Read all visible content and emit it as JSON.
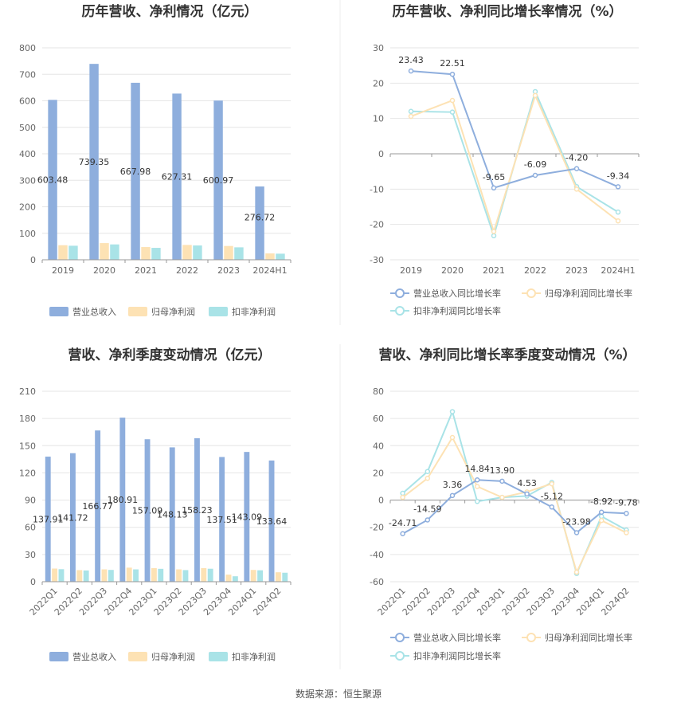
{
  "footer": {
    "source": "数据来源：恒生聚源"
  },
  "colors": {
    "revenue": "#8eaedd",
    "netprofit": "#fde2b4",
    "deducted": "#a9e3e7",
    "revenue_line": "#8eaedd",
    "netprofit_line": "#fde2b4",
    "deducted_line": "#a9e3e7"
  },
  "chart_data": [
    {
      "id": "annual_bar",
      "type": "bar",
      "title": "历年营收、净利情况（亿元）",
      "categories": [
        "2019",
        "2020",
        "2021",
        "2022",
        "2023",
        "2024H1"
      ],
      "ylim": [
        0,
        800
      ],
      "yticks": [
        "0",
        "100",
        "200",
        "300",
        "400",
        "500",
        "600",
        "700",
        "800"
      ],
      "series": [
        {
          "name": "营业总收入",
          "values": [
            603.48,
            739.35,
            667.98,
            627.31,
            600.97,
            276.72
          ],
          "labels": [
            "603.48",
            "739.35",
            "667.98",
            "627.31",
            "600.97",
            "276.72"
          ]
        },
        {
          "name": "归母净利润",
          "values": [
            55,
            63,
            48,
            56,
            52,
            24
          ]
        },
        {
          "name": "扣非净利润",
          "values": [
            53,
            58,
            45,
            54,
            47,
            23
          ]
        }
      ]
    },
    {
      "id": "annual_line",
      "type": "line",
      "title": "历年营收、净利同比增长率情况（%）",
      "categories": [
        "2019",
        "2020",
        "2021",
        "2022",
        "2023",
        "2024H1"
      ],
      "ylim": [
        -30,
        30
      ],
      "yticks": [
        "-30",
        "-20",
        "-10",
        "0",
        "10",
        "20",
        "30"
      ],
      "series": [
        {
          "name": "营业总收入同比增长率",
          "values": [
            23.43,
            22.51,
            -9.65,
            -6.09,
            -4.2,
            -9.34
          ],
          "labels": [
            "23.43",
            "22.51",
            "-9.65",
            "-6.09",
            "-4.20",
            "-9.34"
          ]
        },
        {
          "name": "归母净利润同比增长率",
          "values": [
            10.6,
            15.1,
            -22.0,
            16.5,
            -10.0,
            -19.0
          ]
        },
        {
          "name": "扣非净利润同比增长率",
          "values": [
            12.0,
            11.8,
            -23.2,
            17.6,
            -9.3,
            -16.5
          ]
        }
      ]
    },
    {
      "id": "quarter_bar",
      "type": "bar",
      "title": "营收、净利季度变动情况（亿元）",
      "categories": [
        "2022Q1",
        "2022Q2",
        "2022Q3",
        "2022Q4",
        "2023Q1",
        "2023Q2",
        "2023Q3",
        "2023Q4",
        "2024Q1",
        "2024Q2"
      ],
      "ylim": [
        0,
        210
      ],
      "yticks": [
        "0",
        "30",
        "60",
        "90",
        "120",
        "150",
        "180",
        "210"
      ],
      "series": [
        {
          "name": "营业总收入",
          "values": [
            137.91,
            141.72,
            166.77,
            180.91,
            157.09,
            148.13,
            158.23,
            137.51,
            143.09,
            133.64
          ],
          "labels": [
            "137.91",
            "141.72",
            "166.77",
            "180.91",
            "157.09",
            "148.13",
            "158.23",
            "137.51",
            "143.09",
            "133.64"
          ]
        },
        {
          "name": "归母净利润",
          "values": [
            14.5,
            12.8,
            13.6,
            15.5,
            15.0,
            13.6,
            15.0,
            7.8,
            13.0,
            10.4
          ]
        },
        {
          "name": "扣非净利润",
          "values": [
            13.8,
            12.4,
            13.0,
            13.6,
            14.2,
            12.8,
            14.3,
            6.0,
            12.6,
            9.9
          ]
        }
      ]
    },
    {
      "id": "quarter_line",
      "type": "line",
      "title": "营收、净利同比增长率季度变动情况（%）",
      "categories": [
        "2022Q1",
        "2022Q2",
        "2022Q3",
        "2022Q4",
        "2023Q1",
        "2023Q2",
        "2023Q3",
        "2023Q4",
        "2024Q1",
        "2024Q2"
      ],
      "ylim": [
        -60,
        80
      ],
      "yticks": [
        "-60",
        "-40",
        "-20",
        "0",
        "20",
        "40",
        "60",
        "80"
      ],
      "series": [
        {
          "name": "营业总收入同比增长率",
          "values": [
            -24.71,
            -14.59,
            3.36,
            14.84,
            13.9,
            4.53,
            -5.12,
            -23.98,
            -8.92,
            -9.78
          ],
          "labels": [
            "-24.71",
            "-14.59",
            "3.36",
            "14.84",
            "13.90",
            "4.53",
            "-5.12",
            "-23.98",
            "-8.92",
            "-9.78"
          ]
        },
        {
          "name": "归母净利润同比增长率",
          "values": [
            2,
            16,
            46,
            10,
            2,
            6,
            12,
            -53,
            -15,
            -24
          ]
        },
        {
          "name": "扣非净利润同比增长率",
          "values": [
            5,
            21,
            65,
            -1,
            2,
            3,
            13,
            -54,
            -12,
            -22
          ]
        }
      ]
    }
  ]
}
